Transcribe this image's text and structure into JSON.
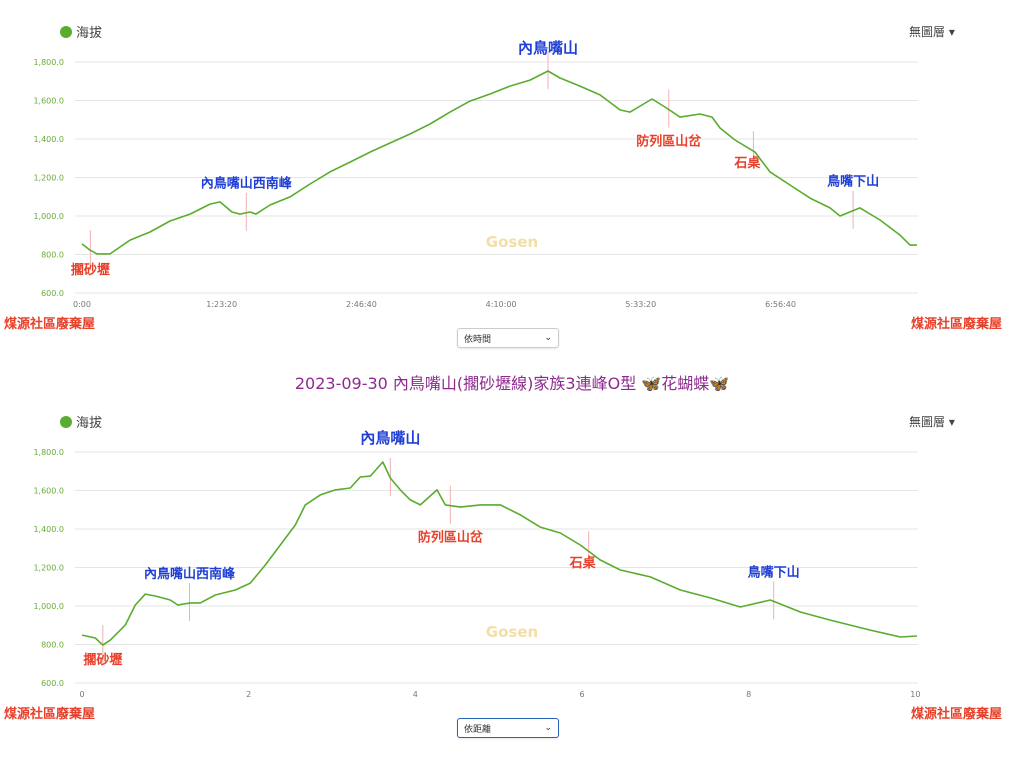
{
  "page_title": "2023-09-30 內鳥嘴山(擱砂壢線)家族3連峰O型 🦋花蝴蝶🦋",
  "watermark": "Gosen",
  "colors": {
    "line": "#5aac2e",
    "axis_text": "#6aaa3a",
    "grid": "#e6e6e6",
    "blue_label": "#1f3fd6",
    "red_label": "#e8402a",
    "marker": "#f3b0b0",
    "watermark": "#f3dfa6"
  },
  "start_label": "煤源社區廢棄屋",
  "end_label": "煤源社區廢棄屋",
  "chart_data": [
    {
      "type": "line",
      "legend": "海拔",
      "layer_menu": "無圖層 ▾",
      "x_mode_select": "依時間",
      "x_type": "time",
      "xlim": [
        "0:00:00",
        "8:18:05"
      ],
      "ylim": [
        600,
        1800
      ],
      "yticks": [
        "600.0",
        "800.0",
        "1,000.0",
        "1,200.0",
        "1,400.0",
        "1,600.0",
        "1,800.0"
      ],
      "xticks": [
        "0:00",
        "1:23:20",
        "2:46:40",
        "4:10:00",
        "5:33:20",
        "6:56:40"
      ],
      "grid": true,
      "series": [
        {
          "name": "海拔",
          "x": [
            "0:00:00",
            "0:04:46",
            "0:08:57",
            "0:16:42",
            "0:22:40",
            "0:28:38",
            "0:40:34",
            "0:52:30",
            "1:04:25",
            "1:16:21",
            "1:22:19",
            "1:29:28",
            "1:34:15",
            "1:40:13",
            "1:43:47",
            "1:52:08",
            "2:04:04",
            "2:16:00",
            "2:27:56",
            "2:39:52",
            "2:51:47",
            "3:03:43",
            "3:15:39",
            "3:27:35",
            "3:39:31",
            "3:51:27",
            "4:03:22",
            "4:15:18",
            "4:27:14",
            "4:37:58",
            "4:45:08",
            "4:57:03",
            "5:08:59",
            "5:20:55",
            "5:26:53",
            "5:40:00",
            "5:47:46",
            "5:56:42",
            "6:08:38",
            "6:15:48",
            "6:20:34",
            "6:29:31",
            "6:41:27",
            "6:50:24",
            "7:02:19",
            "7:14:15",
            "7:26:11",
            "7:32:09",
            "7:44:05",
            "7:56:01",
            "8:07:56",
            "8:13:54",
            "8:18:05"
          ],
          "y": [
            855,
            823,
            803,
            803,
            839,
            875,
            917,
            974,
            1010,
            1062,
            1073,
            1021,
            1010,
            1021,
            1010,
            1057,
            1099,
            1166,
            1229,
            1280,
            1332,
            1379,
            1426,
            1478,
            1540,
            1597,
            1634,
            1675,
            1706,
            1753,
            1717,
            1675,
            1629,
            1551,
            1540,
            1608,
            1566,
            1514,
            1530,
            1514,
            1457,
            1395,
            1332,
            1229,
            1161,
            1093,
            1042,
            1000,
            1042,
            979,
            901,
            849,
            849
          ]
        }
      ],
      "annotations": [
        {
          "label": "擱砂壢",
          "x": "0:05:00",
          "color": "red",
          "position": "below"
        },
        {
          "label": "內鳥嘴山西南峰",
          "x": "1:38:00",
          "color": "blue",
          "position": "above"
        },
        {
          "label": "內鳥嘴山",
          "x": "4:38:00",
          "color": "blue",
          "position": "top"
        },
        {
          "label": "防列區山岔",
          "x": "5:50:00",
          "color": "red",
          "position": "below"
        },
        {
          "label": "石桌",
          "x": "6:40:30",
          "color": "red",
          "position": "below-left"
        },
        {
          "label": "鳥嘴下山",
          "x": "7:40:00",
          "color": "blue",
          "position": "above"
        }
      ]
    },
    {
      "type": "line",
      "legend": "海拔",
      "layer_menu": "無圖層 ▾",
      "x_mode_select": "依距離",
      "x_type": "number",
      "xlim": [
        0,
        10.02
      ],
      "ylim": [
        600,
        1800
      ],
      "yticks": [
        "600.0",
        "800.0",
        "1,000.0",
        "1,200.0",
        "1,400.0",
        "1,600.0",
        "1,800.0"
      ],
      "xticks": [
        "0",
        "2",
        "4",
        "6",
        "8",
        "10"
      ],
      "grid": true,
      "series": [
        {
          "name": "海拔",
          "x": [
            0,
            0.16,
            0.25,
            0.34,
            0.52,
            0.64,
            0.76,
            0.88,
            1.06,
            1.15,
            1.3,
            1.42,
            1.6,
            1.84,
            2.02,
            2.2,
            2.38,
            2.56,
            2.68,
            2.86,
            3.04,
            3.22,
            3.34,
            3.46,
            3.61,
            3.7,
            3.82,
            3.94,
            4.06,
            4.26,
            4.36,
            4.54,
            4.78,
            5.02,
            5.26,
            5.5,
            5.74,
            5.98,
            6.22,
            6.46,
            6.82,
            7.18,
            7.54,
            7.9,
            8.26,
            8.62,
            8.98,
            9.46,
            9.82,
            10.02
          ],
          "y": [
            849,
            834,
            797,
            823,
            901,
            1005,
            1062,
            1052,
            1031,
            1005,
            1016,
            1016,
            1057,
            1083,
            1119,
            1213,
            1317,
            1421,
            1525,
            1577,
            1603,
            1613,
            1670,
            1675,
            1748,
            1665,
            1603,
            1551,
            1525,
            1603,
            1525,
            1514,
            1525,
            1525,
            1473,
            1410,
            1379,
            1317,
            1239,
            1187,
            1151,
            1083,
            1042,
            995,
            1031,
            969,
            927,
            875,
            839,
            844
          ]
        }
      ],
      "annotations": [
        {
          "label": "擱砂壢",
          "x": 0.25,
          "color": "red",
          "position": "below"
        },
        {
          "label": "內鳥嘴山西南峰",
          "x": 1.29,
          "color": "blue",
          "position": "above"
        },
        {
          "label": "內鳥嘴山",
          "x": 3.7,
          "color": "blue",
          "position": "top"
        },
        {
          "label": "防列區山岔",
          "x": 4.42,
          "color": "red",
          "position": "below"
        },
        {
          "label": "石桌",
          "x": 6.08,
          "color": "red",
          "position": "below-left"
        },
        {
          "label": "鳥嘴下山",
          "x": 8.3,
          "color": "blue",
          "position": "above"
        }
      ]
    }
  ]
}
